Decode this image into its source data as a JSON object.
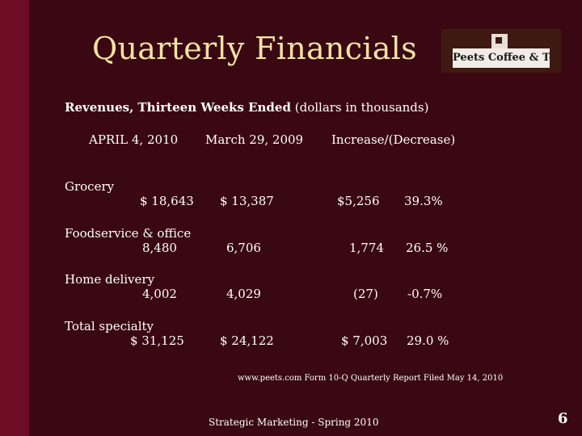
{
  "slide": {
    "title": "Quarterly Financials",
    "subtitle_bold": "Revenues, Thirteen Weeks Ended",
    "subtitle_rest": " (dollars in thousands)",
    "logo_text": "Peets Coffee & Tea",
    "source": "www.peets.com Form 10-Q Quarterly Report Filed May 14, 2010",
    "course": "Strategic Marketing  -  Spring 2010",
    "page_number": "6"
  },
  "table": {
    "headers": [
      "APRIL 4, 2010",
      "March 29, 2009",
      "Increase/(Decrease)"
    ],
    "rows": [
      {
        "label": "Grocery",
        "q2010": "$ 18,643",
        "q2009": "$ 13,387",
        "change": "$5,256",
        "pct": "39.3%"
      },
      {
        "label": "Foodservice & office",
        "q2010": "8,480",
        "q2009": "6,706",
        "change": "1,774",
        "pct": "26.5 %"
      },
      {
        "label": "Home delivery",
        "q2010": "4,002",
        "q2009": "4,029",
        "change": "(27)",
        "pct": "-0.7%"
      },
      {
        "label": "Total specialty",
        "q2010": "$ 31,125",
        "q2009": "$ 24,122",
        "change": "$ 7,003",
        "pct": "29.0 %"
      }
    ]
  },
  "colors": {
    "background": "#3a0812",
    "left_bar": "#6e0d24",
    "title": "#f3e3a3"
  }
}
